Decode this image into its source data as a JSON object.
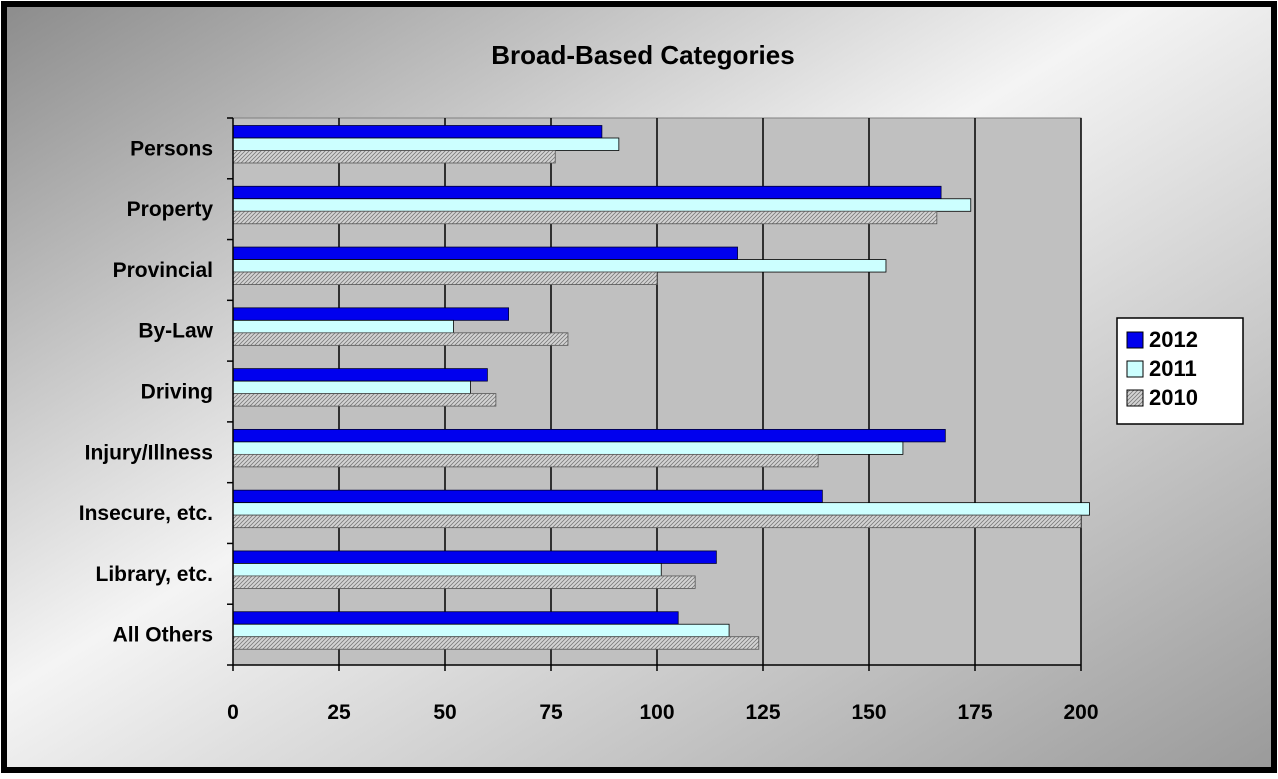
{
  "chart_data": {
    "type": "bar",
    "orientation": "horizontal",
    "title": "Broad-Based Categories",
    "categories": [
      "Persons",
      "Property",
      "Provincial",
      "By-Law",
      "Driving",
      "Injury/Illness",
      "Insecure, etc.",
      "Library, etc.",
      "All Others"
    ],
    "series": [
      {
        "name": "2012",
        "values": [
          87,
          167,
          119,
          65,
          60,
          168,
          139,
          114,
          105
        ]
      },
      {
        "name": "2011",
        "values": [
          91,
          174,
          154,
          52,
          56,
          158,
          202,
          101,
          117
        ]
      },
      {
        "name": "2010",
        "values": [
          76,
          166,
          100,
          79,
          62,
          138,
          200,
          109,
          124
        ]
      }
    ],
    "xlim": [
      0,
      200
    ],
    "xticks": [
      "0",
      "25",
      "50",
      "75",
      "100",
      "125",
      "150",
      "175",
      "200"
    ],
    "xlabel": "",
    "ylabel": "",
    "grid": "vertical",
    "legend_position": "right",
    "colors": {
      "series": [
        "#0000ee",
        "#ccffff",
        "#c8c8c8"
      ],
      "plot_background": "#c0c0c0",
      "frame": "#000000"
    }
  }
}
